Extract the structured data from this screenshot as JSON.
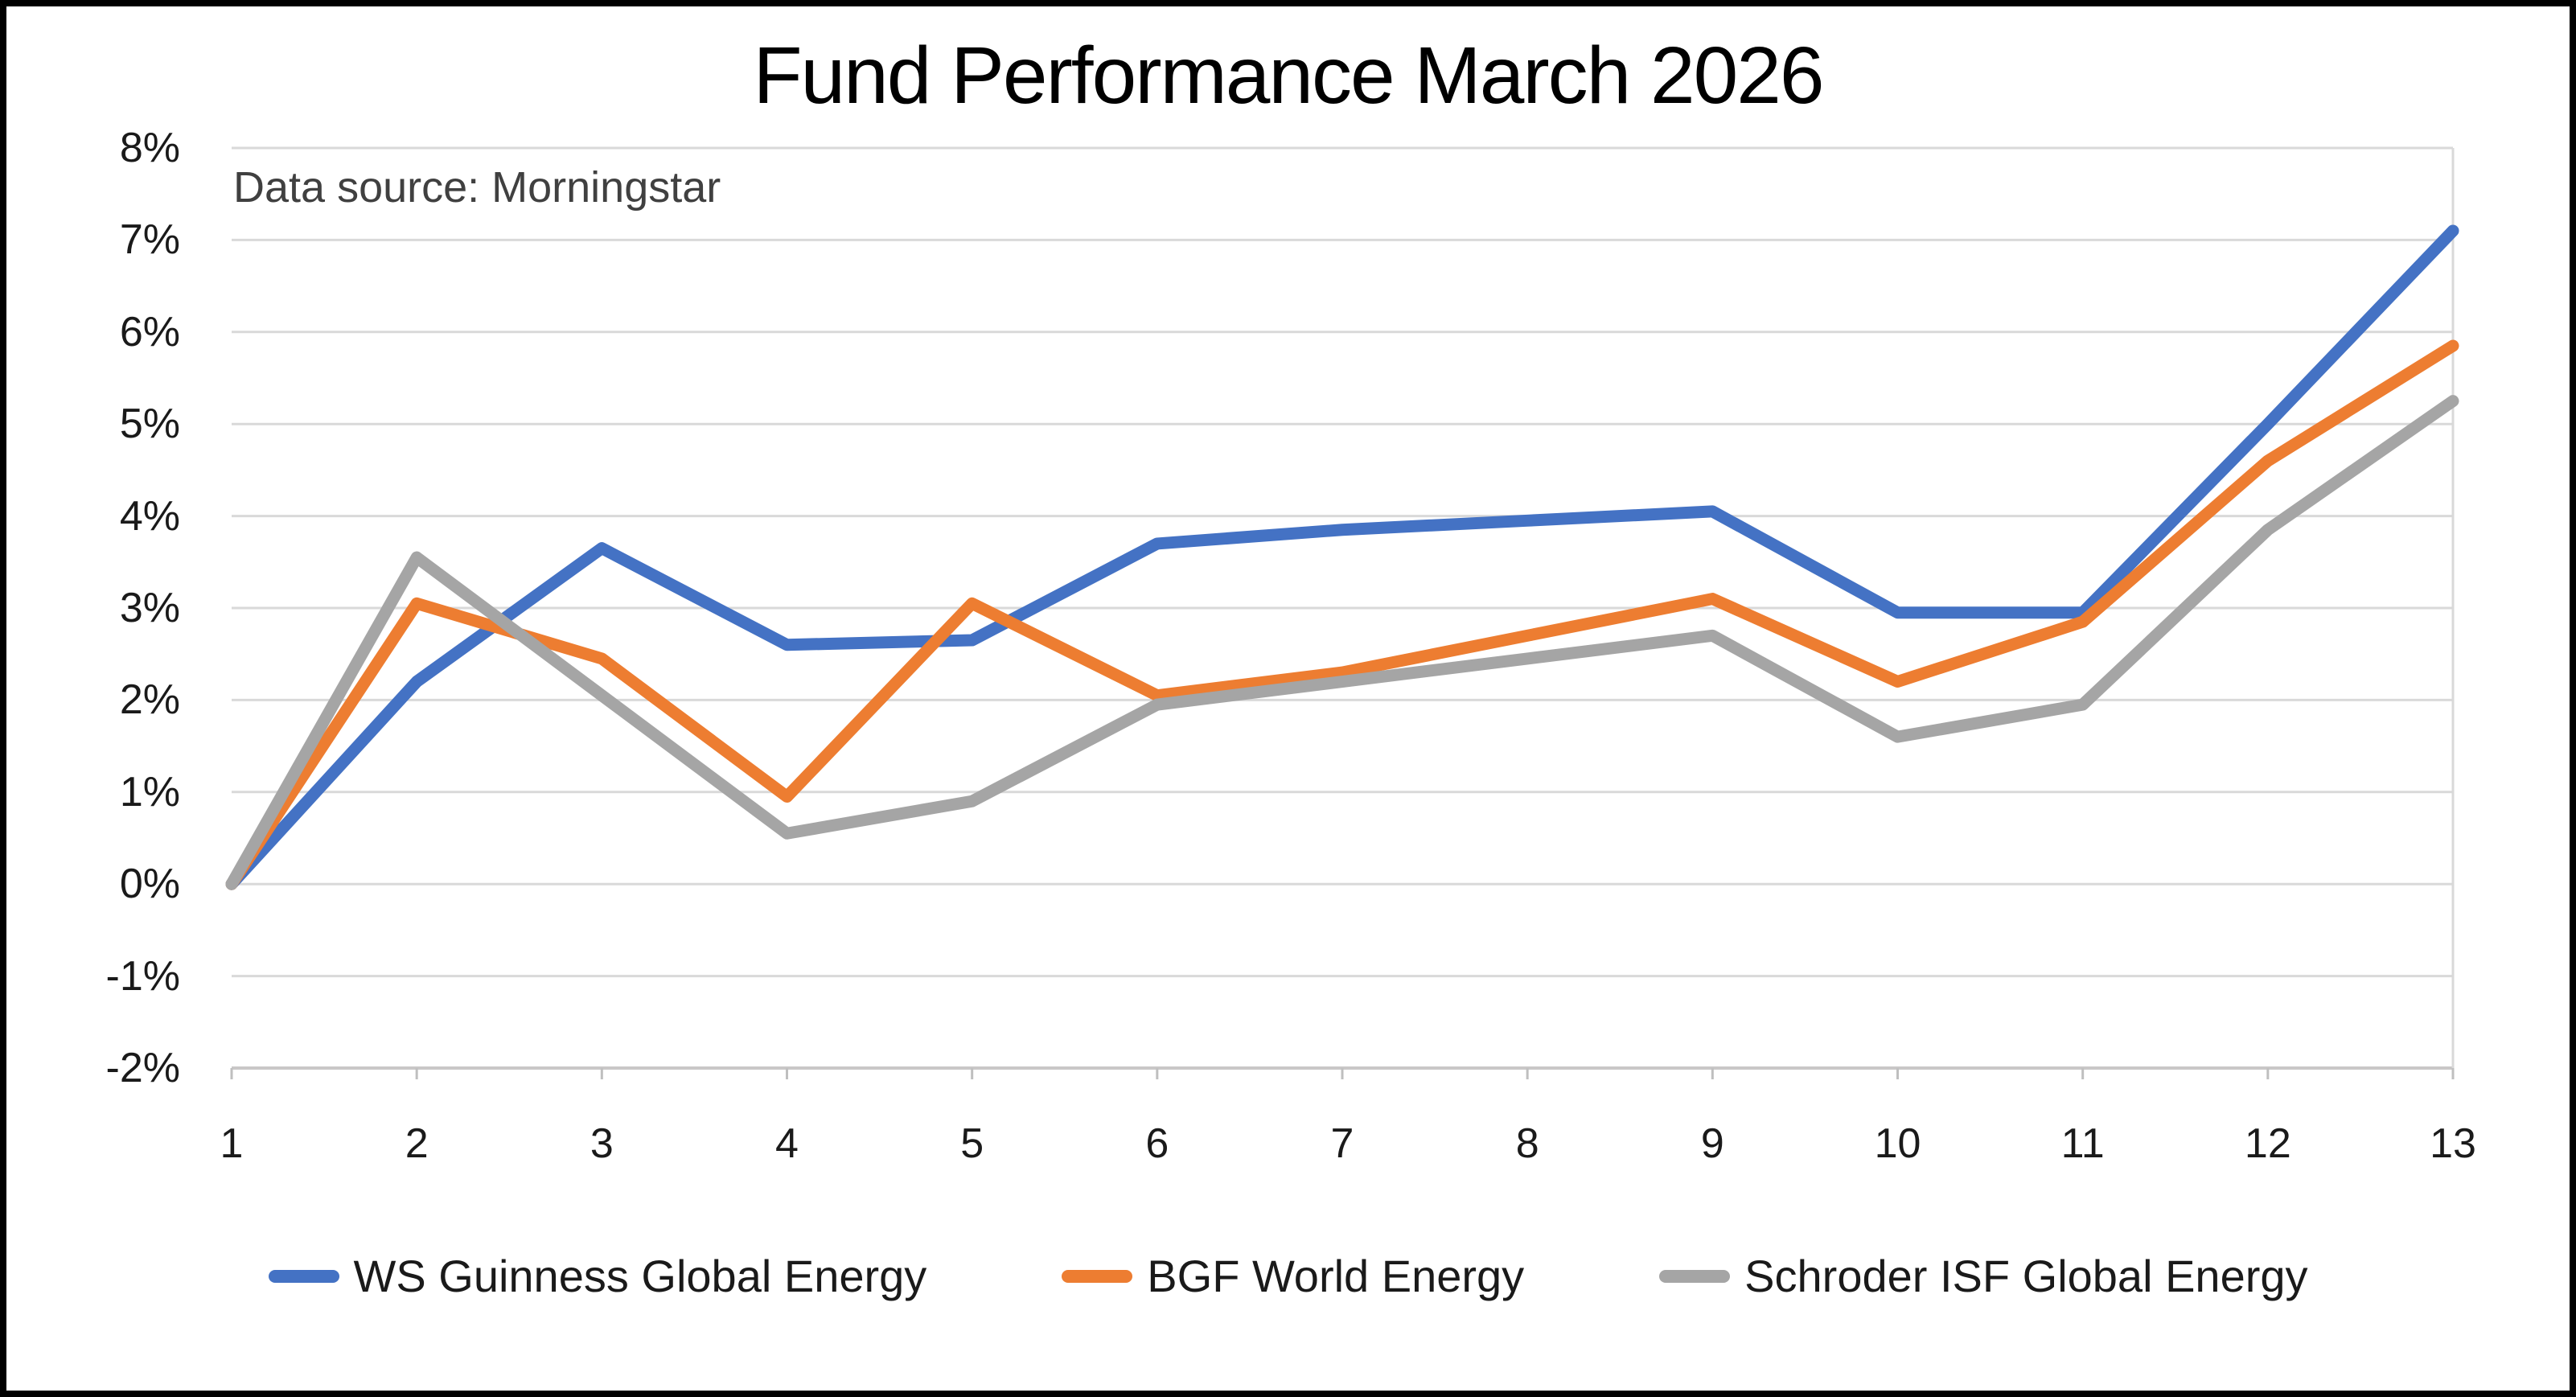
{
  "chart_data": {
    "type": "line",
    "title": "Fund Performance March 2026",
    "annotation": "Data source: Morningstar",
    "xlabel": "",
    "ylabel": "",
    "unit": "%",
    "x": [
      1,
      2,
      3,
      4,
      5,
      6,
      7,
      8,
      9,
      10,
      11,
      12,
      13
    ],
    "x_tick_labels": [
      "1",
      "2",
      "3",
      "4",
      "5",
      "6",
      "7",
      "8",
      "9",
      "10",
      "11",
      "12",
      "13"
    ],
    "ylim": [
      -2,
      8
    ],
    "y_step": 1,
    "y_tick_labels": [
      "8%",
      "7%",
      "6%",
      "5%",
      "4%",
      "3%",
      "2%",
      "1%",
      "0%",
      "-1%",
      "-2%"
    ],
    "y_tick_values": [
      8,
      7,
      6,
      5,
      4,
      3,
      2,
      1,
      0,
      -1,
      -2
    ],
    "grid": "horizontal",
    "legend_position": "bottom",
    "series": [
      {
        "name": "WS Guinness Global Energy",
        "color": "#4472C4",
        "values": [
          0,
          2.2,
          3.65,
          2.6,
          2.65,
          3.7,
          3.85,
          3.95,
          4.05,
          2.95,
          2.95,
          5.0,
          7.1
        ]
      },
      {
        "name": "BGF World Energy",
        "color": "#ED7D31",
        "values": [
          0,
          3.05,
          2.45,
          0.95,
          3.05,
          2.05,
          2.3,
          2.7,
          3.1,
          2.2,
          2.85,
          4.6,
          5.85
        ]
      },
      {
        "name": "Schroder ISF Global Energy",
        "color": "#A5A5A5",
        "values": [
          0,
          3.55,
          2.05,
          0.55,
          0.9,
          1.95,
          2.2,
          2.45,
          2.7,
          1.6,
          1.95,
          3.85,
          5.25
        ]
      }
    ]
  },
  "style_colors": {
    "gridline": "#D9D9D9",
    "axis_line": "#C9C7C7",
    "tick": "#BFBFBF",
    "right_edge_line": "#D9D9D9",
    "title_text": "#000000",
    "annotation_text": "#404040",
    "label_text": "#1a1a1a",
    "background": "#FFFFFF",
    "border": "#000000"
  }
}
